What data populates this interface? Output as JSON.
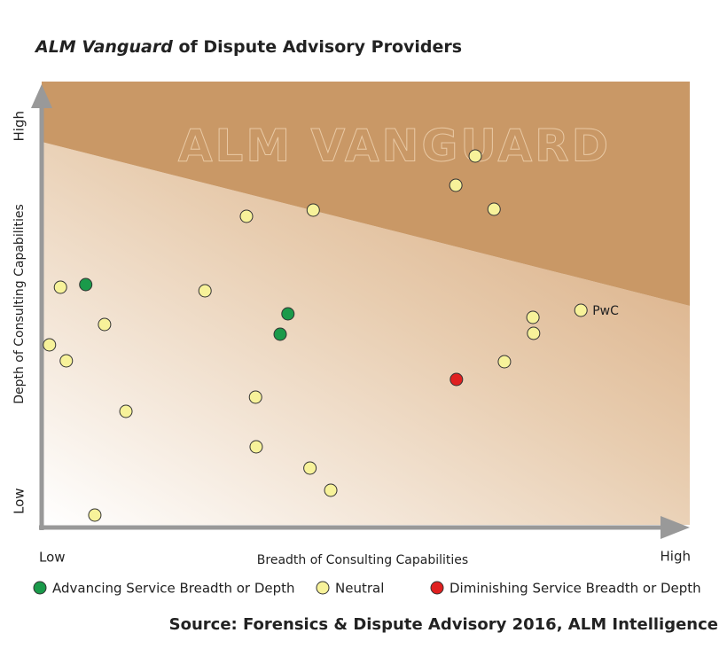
{
  "chart_data": {
    "type": "scatter",
    "title_emphasis": "ALM Vanguard",
    "title": "of Dispute Advisory Providers",
    "watermark": "ALM VANGUARD",
    "x_label": "Breadth of Consulting Capabilities",
    "y_label": "Depth of Consulting Capabilities",
    "x_low": "Low",
    "x_high": "High",
    "y_low": "Low",
    "y_high": "High",
    "source": "Source: Forensics & Dispute Advisory 2016, ALM Intelligence",
    "xlim": [
      0,
      100
    ],
    "ylim": [
      0,
      100
    ],
    "series": [
      {
        "name": "Advancing Service Breadth or Depth",
        "color": "#1a9a4a",
        "x": [
          6.8,
          38.0,
          36.8
        ],
        "values": [
          54.2,
          47.6,
          43.0
        ]
      },
      {
        "name": "Neutral",
        "color": "#f7f29a",
        "x": [
          66.9,
          63.9,
          69.8,
          41.9,
          31.6,
          2.9,
          25.2,
          9.7,
          1.2,
          3.8,
          13.0,
          33.0,
          33.1,
          41.4,
          44.6,
          8.2,
          75.8,
          75.9,
          83.2,
          71.4
        ],
        "values": [
          83.2,
          76.6,
          71.2,
          71.0,
          69.6,
          53.6,
          52.8,
          45.2,
          40.6,
          37.0,
          25.6,
          28.8,
          17.6,
          12.8,
          7.8,
          2.2,
          46.8,
          43.2,
          48.4,
          36.8
        ],
        "labels": [
          null,
          null,
          null,
          null,
          null,
          null,
          null,
          null,
          null,
          null,
          null,
          null,
          null,
          null,
          null,
          null,
          null,
          null,
          "PwC",
          null
        ]
      },
      {
        "name": "Diminishing Service Breadth or Depth",
        "color": "#e02020",
        "x": [
          64.0
        ],
        "values": [
          32.8
        ]
      }
    ]
  }
}
